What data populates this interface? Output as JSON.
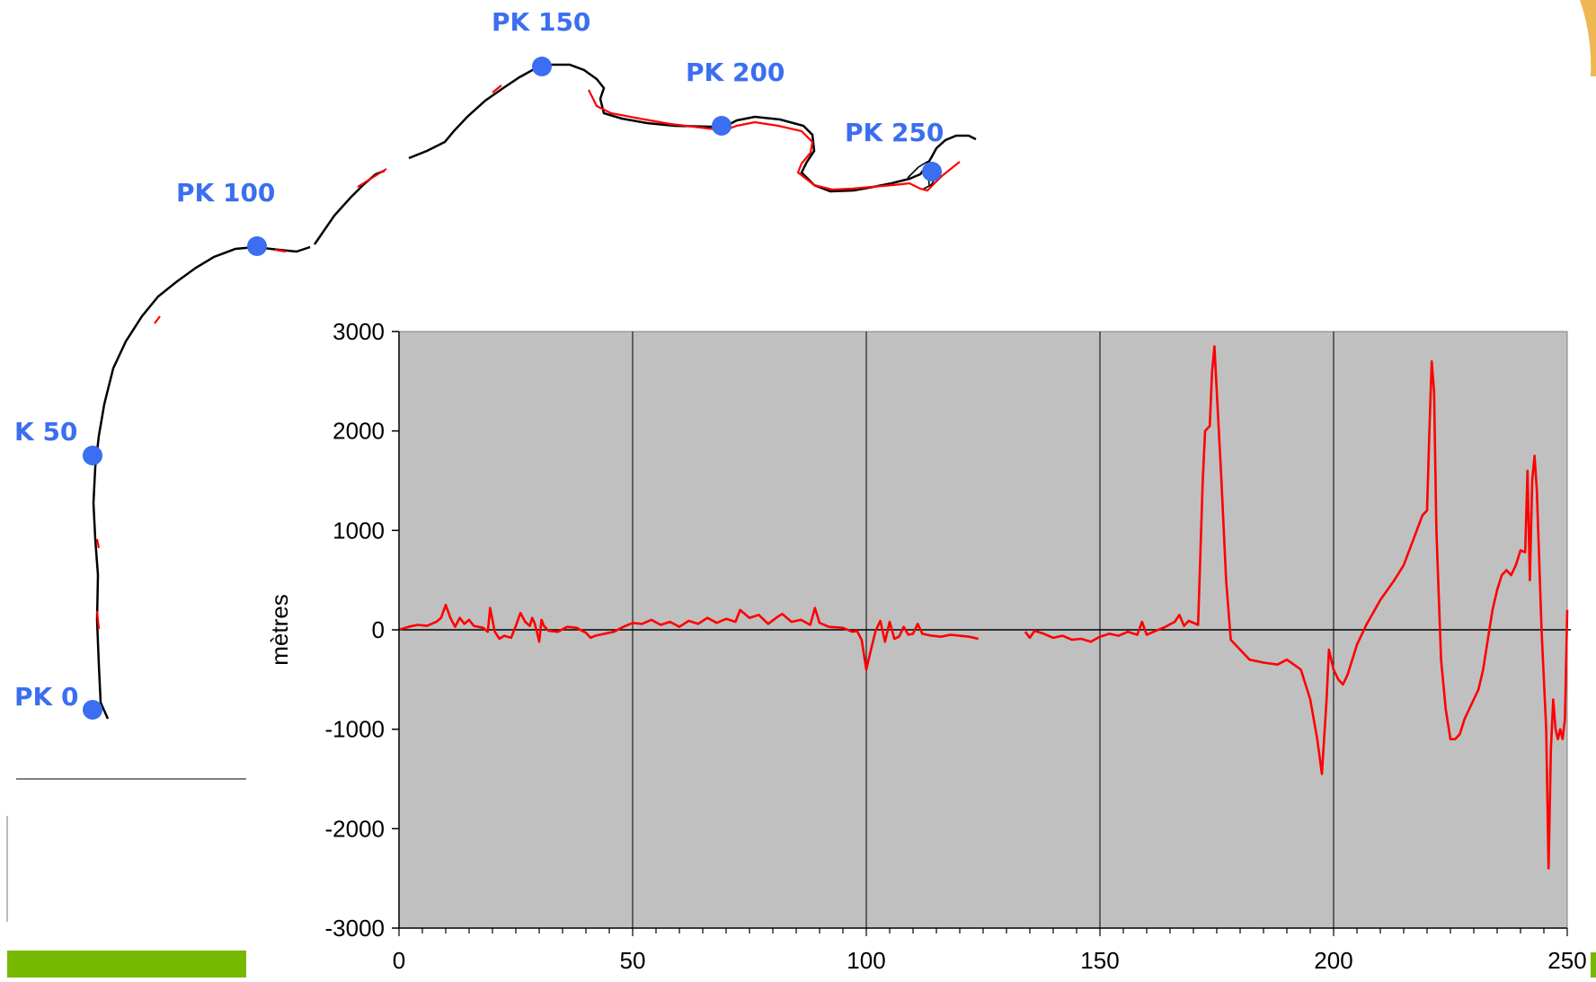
{
  "colors": {
    "route_black": "#000000",
    "route_red": "#ff0000",
    "marker_blue": "#3b6ef0",
    "plot_bg": "#c0c0c0",
    "series_red": "#ff0000",
    "green_accent": "#76b900",
    "yellow_accent": "#e8a628"
  },
  "map": {
    "markers": [
      {
        "label": "PK 0"
      },
      {
        "label": "K 50"
      },
      {
        "label": "PK 100"
      },
      {
        "label": "PK 150"
      },
      {
        "label": "PK 200"
      },
      {
        "label": "PK 250"
      }
    ]
  },
  "chart_data": {
    "type": "line",
    "title": "",
    "xlabel": "",
    "ylabel": "mètres",
    "xlim": [
      0,
      250
    ],
    "ylim": [
      -3000,
      3000
    ],
    "xticks": [
      0,
      50,
      100,
      150,
      200,
      250
    ],
    "xtick_labels": [
      "0",
      "50",
      "100",
      "150",
      "200",
      "250"
    ],
    "yticks": [
      3000,
      2000,
      1000,
      0,
      -1000,
      -2000,
      -3000
    ],
    "ytick_labels": [
      "3000",
      "2000",
      "1000",
      "0",
      "-1000",
      "-2000",
      "-3000"
    ],
    "grid": "vertical",
    "legend": "none",
    "series": [
      {
        "segments": [
          [
            [
              0,
              0
            ],
            [
              2,
              30
            ],
            [
              4,
              50
            ],
            [
              6,
              40
            ],
            [
              8,
              80
            ],
            [
              9,
              120
            ],
            [
              10,
              250
            ],
            [
              11,
              120
            ],
            [
              12,
              30
            ],
            [
              13,
              120
            ],
            [
              14,
              60
            ],
            [
              15,
              100
            ],
            [
              16,
              40
            ],
            [
              18,
              20
            ],
            [
              19,
              -20
            ],
            [
              19.5,
              220
            ],
            [
              20.5,
              -20
            ],
            [
              21.5,
              -90
            ],
            [
              22.5,
              -60
            ],
            [
              24,
              -80
            ],
            [
              25,
              40
            ],
            [
              26,
              170
            ],
            [
              27,
              80
            ],
            [
              28,
              40
            ],
            [
              28.5,
              120
            ],
            [
              29,
              70
            ],
            [
              29.5,
              -20
            ],
            [
              30,
              -120
            ],
            [
              30.5,
              100
            ],
            [
              31,
              40
            ],
            [
              32,
              -10
            ],
            [
              34,
              -20
            ],
            [
              36,
              30
            ],
            [
              38,
              20
            ],
            [
              40,
              -30
            ],
            [
              41,
              -80
            ],
            [
              42,
              -60
            ],
            [
              44,
              -40
            ],
            [
              46,
              -20
            ],
            [
              48,
              30
            ],
            [
              50,
              70
            ],
            [
              52,
              60
            ],
            [
              54,
              100
            ],
            [
              56,
              50
            ],
            [
              58,
              80
            ],
            [
              60,
              30
            ],
            [
              62,
              90
            ],
            [
              64,
              60
            ],
            [
              66,
              120
            ],
            [
              68,
              70
            ],
            [
              70,
              110
            ],
            [
              72,
              80
            ],
            [
              73,
              200
            ],
            [
              75,
              120
            ],
            [
              77,
              150
            ],
            [
              79,
              60
            ],
            [
              81,
              130
            ],
            [
              82,
              160
            ],
            [
              84,
              80
            ],
            [
              86,
              100
            ],
            [
              88,
              50
            ],
            [
              89,
              220
            ],
            [
              90,
              70
            ],
            [
              92,
              30
            ],
            [
              95,
              20
            ],
            [
              97,
              -20
            ],
            [
              98,
              -10
            ],
            [
              99,
              -100
            ],
            [
              100,
              -400
            ],
            [
              101,
              -200
            ],
            [
              102,
              -10
            ],
            [
              103,
              90
            ],
            [
              104,
              -120
            ],
            [
              105,
              80
            ],
            [
              106,
              -90
            ],
            [
              107,
              -70
            ],
            [
              108,
              30
            ],
            [
              109,
              -50
            ],
            [
              110,
              -40
            ],
            [
              111,
              60
            ],
            [
              112,
              -40
            ],
            [
              114,
              -60
            ],
            [
              116,
              -70
            ],
            [
              118,
              -50
            ],
            [
              120,
              -60
            ],
            [
              122,
              -70
            ],
            [
              124,
              -90
            ]
          ],
          [
            [
              134,
              -20
            ],
            [
              135,
              -80
            ],
            [
              136,
              -10
            ],
            [
              138,
              -40
            ],
            [
              140,
              -80
            ],
            [
              142,
              -60
            ],
            [
              144,
              -100
            ],
            [
              146,
              -90
            ],
            [
              148,
              -120
            ],
            [
              150,
              -70
            ],
            [
              152,
              -40
            ],
            [
              154,
              -60
            ],
            [
              156,
              -20
            ],
            [
              158,
              -50
            ],
            [
              159,
              80
            ],
            [
              160,
              -50
            ],
            [
              162,
              -10
            ],
            [
              164,
              30
            ],
            [
              166,
              80
            ],
            [
              167,
              150
            ],
            [
              168,
              40
            ],
            [
              169,
              90
            ],
            [
              171,
              50
            ],
            [
              172,
              1500
            ],
            [
              172.5,
              2000
            ],
            [
              173.5,
              2050
            ],
            [
              174,
              2600
            ],
            [
              174.5,
              2850
            ],
            [
              175,
              2400
            ],
            [
              176,
              1500
            ],
            [
              177,
              500
            ],
            [
              178,
              -100
            ],
            [
              180,
              -200
            ],
            [
              182,
              -300
            ],
            [
              185,
              -330
            ],
            [
              188,
              -350
            ],
            [
              190,
              -300
            ],
            [
              193,
              -400
            ],
            [
              195,
              -700
            ],
            [
              196.5,
              -1100
            ],
            [
              197.5,
              -1450
            ],
            [
              198.5,
              -700
            ],
            [
              199,
              -200
            ],
            [
              200,
              -400
            ],
            [
              201,
              -500
            ],
            [
              202,
              -550
            ],
            [
              203,
              -450
            ],
            [
              205,
              -150
            ],
            [
              207,
              50
            ],
            [
              210,
              300
            ],
            [
              213,
              500
            ],
            [
              215,
              650
            ],
            [
              217,
              900
            ],
            [
              219,
              1150
            ],
            [
              220,
              1200
            ],
            [
              220.5,
              2000
            ],
            [
              221,
              2700
            ],
            [
              221.5,
              2400
            ],
            [
              222,
              1000
            ],
            [
              223,
              -300
            ],
            [
              224,
              -800
            ],
            [
              225,
              -1100
            ],
            [
              226,
              -1100
            ],
            [
              227,
              -1050
            ],
            [
              228,
              -900
            ],
            [
              229,
              -800
            ],
            [
              230,
              -700
            ],
            [
              231,
              -600
            ],
            [
              232,
              -400
            ],
            [
              233,
              -100
            ],
            [
              234,
              200
            ],
            [
              235,
              400
            ],
            [
              236,
              550
            ],
            [
              237,
              600
            ],
            [
              238,
              550
            ],
            [
              239,
              650
            ],
            [
              240,
              800
            ],
            [
              241,
              780
            ],
            [
              241.5,
              1600
            ],
            [
              242,
              500
            ],
            [
              242.5,
              1500
            ],
            [
              243,
              1750
            ],
            [
              243.5,
              1400
            ],
            [
              244,
              700
            ],
            [
              244.5,
              0
            ],
            [
              245,
              -500
            ],
            [
              245.5,
              -1000
            ],
            [
              246,
              -2400
            ],
            [
              246.5,
              -1200
            ],
            [
              247,
              -700
            ],
            [
              247.5,
              -1000
            ],
            [
              248,
              -1100
            ],
            [
              248.5,
              -1000
            ],
            [
              249,
              -1100
            ],
            [
              249.5,
              -900
            ],
            [
              250,
              200
            ]
          ]
        ]
      }
    ]
  }
}
